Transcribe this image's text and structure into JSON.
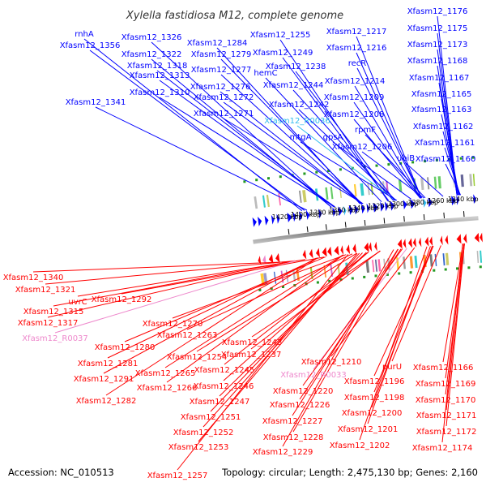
{
  "header": {
    "title": "Xylella fastidiosa M12, complete genome"
  },
  "footer": {
    "accession": "Accession: NC_010513",
    "summary": "Topology: circular; Length: 2,475,130 bp; Genes: 2,160"
  },
  "colors": {
    "forward_gene": "#0000ff",
    "reverse_gene": "#ff0000",
    "rna_forward": "#33bbee",
    "rna_reverse": "#ee88cc",
    "backbone": "#888888",
    "gc_dots": "#229922"
  },
  "ticks": [
    {
      "label": "1420 kbp"
    },
    {
      "label": "1400 kbp"
    },
    {
      "label": "1380 kbp"
    },
    {
      "label": "1360 kbp"
    },
    {
      "label": "1340 kbp"
    },
    {
      "label": "1320 kbp"
    },
    {
      "label": "1300 kbp"
    },
    {
      "label": "1280 kbp"
    },
    {
      "label": "1260 kbp"
    },
    {
      "label": "1240 kbp"
    }
  ],
  "top_labels": [
    {
      "text": "rnhA",
      "kind": "gene"
    },
    {
      "text": "Xfasm12_1356",
      "kind": "gene"
    },
    {
      "text": "Xfasm12_1341",
      "kind": "gene"
    },
    {
      "text": "Xfasm12_1326",
      "kind": "gene"
    },
    {
      "text": "Xfasm12_1322",
      "kind": "gene"
    },
    {
      "text": "Xfasm12_1318",
      "kind": "gene"
    },
    {
      "text": "Xfasm12_1313",
      "kind": "gene"
    },
    {
      "text": "Xfasm12_1310",
      "kind": "gene"
    },
    {
      "text": "Xfasm12_1284",
      "kind": "gene"
    },
    {
      "text": "Xfasm12_1279",
      "kind": "gene"
    },
    {
      "text": "Xfasm12_1277",
      "kind": "gene"
    },
    {
      "text": "Xfasm12_1276",
      "kind": "gene"
    },
    {
      "text": "Xfasm12_1272",
      "kind": "gene"
    },
    {
      "text": "Xfasm12_1271",
      "kind": "gene"
    },
    {
      "text": "Xfasm12_1255",
      "kind": "gene"
    },
    {
      "text": "Xfasm12_1249",
      "kind": "gene"
    },
    {
      "text": "hemC",
      "kind": "gene"
    },
    {
      "text": "Xfasm12_1244",
      "kind": "gene"
    },
    {
      "text": "Xfasm12_1242",
      "kind": "gene"
    },
    {
      "text": "Xfasm12_R0036",
      "kind": "rna"
    },
    {
      "text": "mtgA",
      "kind": "gene"
    },
    {
      "text": "Xfasm12_1238",
      "kind": "gene"
    },
    {
      "text": "Xfasm12_1217",
      "kind": "gene"
    },
    {
      "text": "Xfasm12_1216",
      "kind": "gene"
    },
    {
      "text": "recR",
      "kind": "gene"
    },
    {
      "text": "Xfasm12_1214",
      "kind": "gene"
    },
    {
      "text": "Xfasm12_1209",
      "kind": "gene"
    },
    {
      "text": "Xfasm12_1208",
      "kind": "gene"
    },
    {
      "text": "rpmF",
      "kind": "gene"
    },
    {
      "text": "gpsA",
      "kind": "gene"
    },
    {
      "text": "Xfasm12_1206",
      "kind": "gene"
    },
    {
      "text": "ubiB",
      "kind": "gene"
    },
    {
      "text": "Xfasm12_1176",
      "kind": "gene"
    },
    {
      "text": "Xfasm12_1175",
      "kind": "gene"
    },
    {
      "text": "Xfasm12_1173",
      "kind": "gene"
    },
    {
      "text": "Xfasm12_1168",
      "kind": "gene"
    },
    {
      "text": "Xfasm12_1167",
      "kind": "gene"
    },
    {
      "text": "Xfasm12_1165",
      "kind": "gene"
    },
    {
      "text": "Xfasm12_1163",
      "kind": "gene"
    },
    {
      "text": "Xfasm12_1162",
      "kind": "gene"
    },
    {
      "text": "Xfasm12_1161",
      "kind": "gene"
    },
    {
      "text": "Xfasm12_1160",
      "kind": "gene"
    }
  ],
  "bottom_labels": [
    {
      "text": "Xfasm12_1340",
      "kind": "gene"
    },
    {
      "text": "Xfasm12_1321",
      "kind": "gene"
    },
    {
      "text": "uvrC",
      "kind": "gene"
    },
    {
      "text": "Xfasm12_1315",
      "kind": "gene"
    },
    {
      "text": "Xfasm12_1317",
      "kind": "gene"
    },
    {
      "text": "Xfasm12_R0037",
      "kind": "rna"
    },
    {
      "text": "Xfasm12_1292",
      "kind": "gene"
    },
    {
      "text": "Xfasm12_1270",
      "kind": "gene"
    },
    {
      "text": "Xfasm12_1263",
      "kind": "gene"
    },
    {
      "text": "Xfasm12_1280",
      "kind": "gene"
    },
    {
      "text": "Xfasm12_1281",
      "kind": "gene"
    },
    {
      "text": "Xfasm12_1291",
      "kind": "gene"
    },
    {
      "text": "Xfasm12_1282",
      "kind": "gene"
    },
    {
      "text": "Xfasm12_1265",
      "kind": "gene"
    },
    {
      "text": "Xfasm12_1266",
      "kind": "gene"
    },
    {
      "text": "Xfasm12_1243",
      "kind": "gene"
    },
    {
      "text": "Xfasm12_1237",
      "kind": "gene"
    },
    {
      "text": "Xfasm12_1254",
      "kind": "gene"
    },
    {
      "text": "Xfasm12_1245",
      "kind": "gene"
    },
    {
      "text": "Xfasm12_1246",
      "kind": "gene"
    },
    {
      "text": "Xfasm12_1247",
      "kind": "gene"
    },
    {
      "text": "Xfasm12_1251",
      "kind": "gene"
    },
    {
      "text": "Xfasm12_1252",
      "kind": "gene"
    },
    {
      "text": "Xfasm12_1253",
      "kind": "gene"
    },
    {
      "text": "Xfasm12_1257",
      "kind": "gene"
    },
    {
      "text": "Xfasm12_1210",
      "kind": "gene"
    },
    {
      "text": "Xfasm12_R0033",
      "kind": "rna"
    },
    {
      "text": "Xfasm12_1220",
      "kind": "gene"
    },
    {
      "text": "Xfasm12_1226",
      "kind": "gene"
    },
    {
      "text": "Xfasm12_1227",
      "kind": "gene"
    },
    {
      "text": "Xfasm12_1228",
      "kind": "gene"
    },
    {
      "text": "Xfasm12_1229",
      "kind": "gene"
    },
    {
      "text": "Xfasm12_1196",
      "kind": "gene"
    },
    {
      "text": "Xfasm12_1198",
      "kind": "gene"
    },
    {
      "text": "Xfasm12_1200",
      "kind": "gene"
    },
    {
      "text": "Xfasm12_1201",
      "kind": "gene"
    },
    {
      "text": "Xfasm12_1202",
      "kind": "gene"
    },
    {
      "text": "purU",
      "kind": "gene"
    },
    {
      "text": "Xfasm12_1166",
      "kind": "gene"
    },
    {
      "text": "Xfasm12_1169",
      "kind": "gene"
    },
    {
      "text": "Xfasm12_1170",
      "kind": "gene"
    },
    {
      "text": "Xfasm12_1171",
      "kind": "gene"
    },
    {
      "text": "Xfasm12_1172",
      "kind": "gene"
    },
    {
      "text": "Xfasm12_1174",
      "kind": "gene"
    }
  ]
}
